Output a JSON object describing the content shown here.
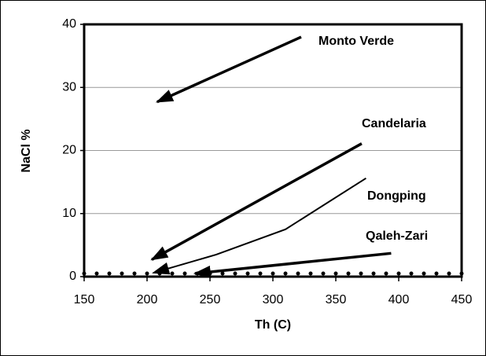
{
  "chart_data": {
    "type": "line",
    "xlabel": "Th (C)",
    "ylabel": "NaCl %",
    "xlim": [
      150,
      450
    ],
    "xticks": [
      150,
      200,
      250,
      300,
      350,
      400,
      450
    ],
    "ylim": [
      0,
      40
    ],
    "yticks": [
      0,
      10,
      20,
      30,
      40
    ],
    "grid": true,
    "arrows": true,
    "series": [
      {
        "name": "Monto Verde",
        "color": "#000000",
        "linewidth": 3.5,
        "x": [
          322.5,
          208
        ],
        "values": [
          38,
          27.7
        ]
      },
      {
        "name": "Candelaria",
        "color": "#000000",
        "linewidth": 3.5,
        "x": [
          370.6,
          203.8
        ],
        "values": [
          21.1,
          2.7
        ]
      },
      {
        "name": "Dongping",
        "color": "#000000",
        "linewidth": 2,
        "x": [
          374,
          310,
          255,
          205
        ],
        "values": [
          15.6,
          7.5,
          3.5,
          0.6
        ]
      },
      {
        "name": "Qaleh-Zari",
        "color": "#000000",
        "linewidth": 3.5,
        "x": [
          394,
          238
        ],
        "values": [
          3.7,
          0.5
        ]
      },
      {
        "color": "#000000",
        "marker": "dot",
        "x": [
          150,
          160,
          170,
          180,
          190,
          200,
          210,
          220,
          230,
          240,
          250,
          260,
          270,
          280,
          290,
          300,
          310,
          320,
          330,
          340,
          350,
          360,
          370,
          380,
          390,
          400,
          410,
          420,
          430,
          440,
          450
        ],
        "values": [
          0.5,
          0.5,
          0.5,
          0.5,
          0.5,
          0.5,
          0.5,
          0.5,
          0.5,
          0.5,
          0.5,
          0.5,
          0.5,
          0.5,
          0.5,
          0.5,
          0.5,
          0.5,
          0.5,
          0.5,
          0.5,
          0.5,
          0.5,
          0.5,
          0.5,
          0.5,
          0.5,
          0.5,
          0.5,
          0.5,
          0.5
        ]
      }
    ]
  }
}
